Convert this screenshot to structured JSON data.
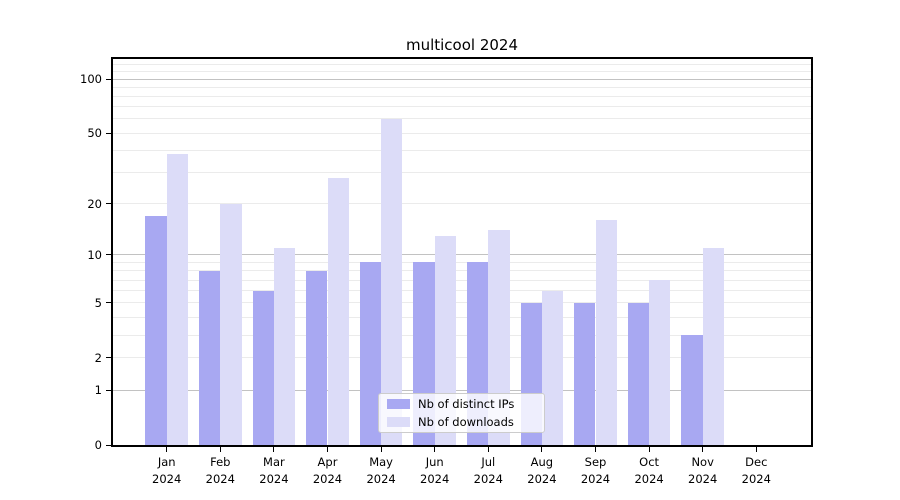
{
  "chart_data": {
    "type": "bar",
    "title": "multicool 2024",
    "categories": [
      {
        "month": "Jan",
        "year": "2024"
      },
      {
        "month": "Feb",
        "year": "2024"
      },
      {
        "month": "Mar",
        "year": "2024"
      },
      {
        "month": "Apr",
        "year": "2024"
      },
      {
        "month": "May",
        "year": "2024"
      },
      {
        "month": "Jun",
        "year": "2024"
      },
      {
        "month": "Jul",
        "year": "2024"
      },
      {
        "month": "Aug",
        "year": "2024"
      },
      {
        "month": "Sep",
        "year": "2024"
      },
      {
        "month": "Oct",
        "year": "2024"
      },
      {
        "month": "Nov",
        "year": "2024"
      },
      {
        "month": "Dec",
        "year": "2024"
      }
    ],
    "series": [
      {
        "name": "Nb of distinct IPs",
        "color": "#a8a8f2",
        "values": [
          17,
          8,
          6,
          8,
          9,
          9,
          9,
          5,
          5,
          5,
          3,
          0
        ]
      },
      {
        "name": "Nb of downloads",
        "color": "#dcdcf8",
        "values": [
          38,
          20,
          11,
          28,
          60,
          13,
          14,
          6,
          16,
          7,
          11,
          0
        ]
      }
    ],
    "yscale": "log1p",
    "ylim": [
      0,
      130
    ],
    "yticks": [
      100,
      50,
      20,
      10,
      5,
      2,
      1,
      0
    ],
    "grid_major": [
      1,
      10,
      100
    ],
    "grid_minor": [
      2,
      3,
      4,
      5,
      6,
      7,
      8,
      9,
      20,
      30,
      40,
      50,
      60,
      70,
      80,
      90,
      110,
      120
    ],
    "grid_major_color": "#c2c2c2",
    "grid_minor_color": "#ebebeb",
    "legend_position": "lower center",
    "xlabel": "",
    "ylabel": ""
  }
}
